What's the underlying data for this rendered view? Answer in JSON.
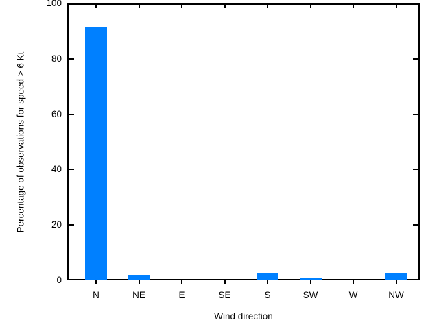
{
  "chart_data": {
    "type": "bar",
    "categories": [
      "N",
      "NE",
      "E",
      "SE",
      "S",
      "SW",
      "W",
      "NW"
    ],
    "values": [
      91.4,
      2.1,
      0,
      0,
      2.4,
      0.8,
      0,
      2.4
    ],
    "title": "",
    "xlabel": "Wind direction",
    "ylabel": "Percentage of observations for speed > 6 Kt",
    "ylim": [
      0,
      100
    ],
    "yticks": [
      0,
      20,
      40,
      60,
      80,
      100
    ],
    "ytick_labels": [
      "0",
      "20",
      "40",
      "60",
      "80",
      "100"
    ],
    "bar_color": "#0080ff",
    "frame_color": "#000000",
    "background_color": "#ffffff",
    "grid": false,
    "legend": "none"
  }
}
